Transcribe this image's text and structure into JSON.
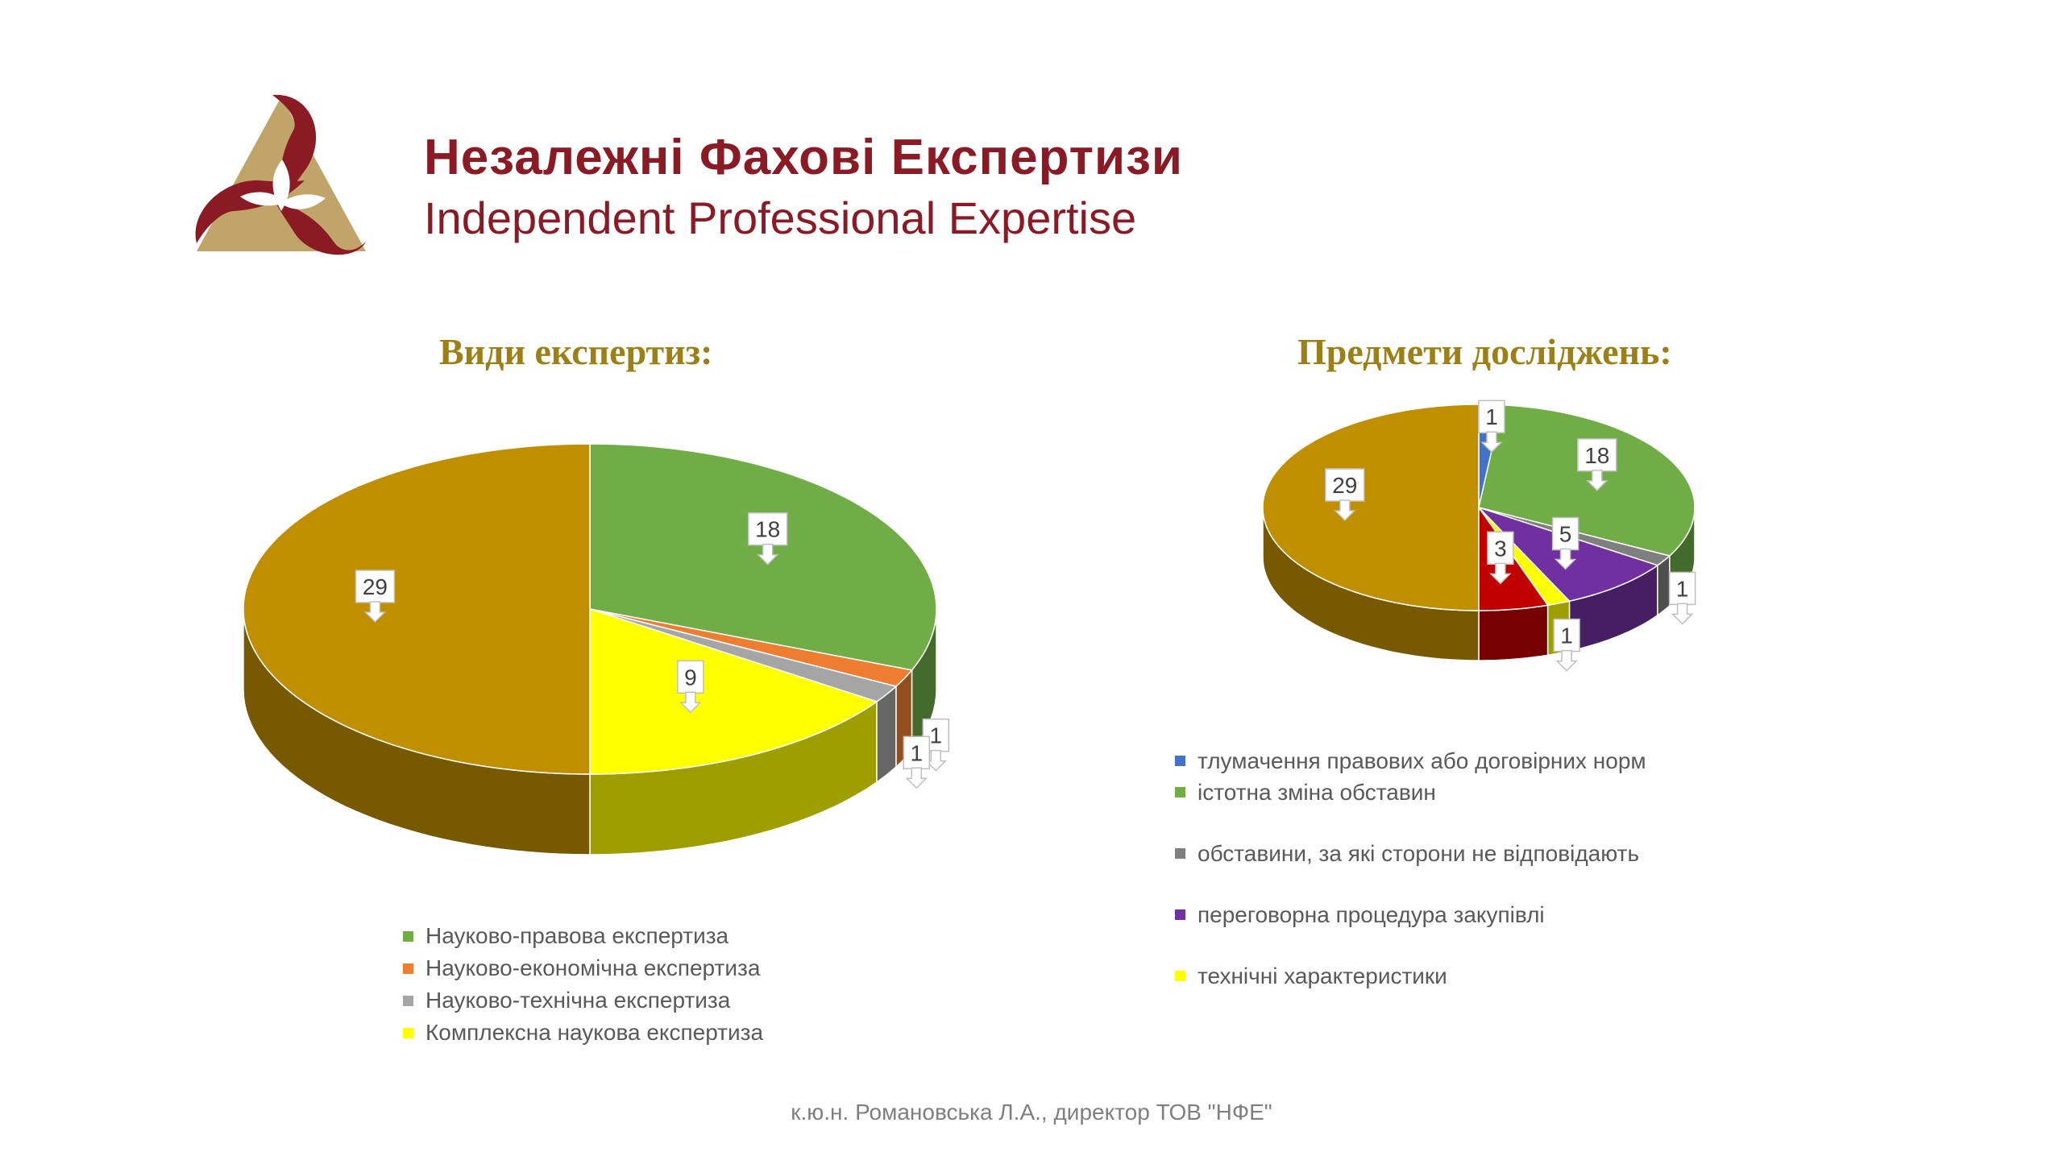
{
  "brand": {
    "title_ua": "Незалежні Фахові Експертизи",
    "title_en": "Independent Professional Expertise",
    "colors": {
      "primary": "#8a1a24",
      "secondary": "#c1a46a"
    }
  },
  "chart_data": [
    {
      "type": "pie",
      "title": "Види експертиз:",
      "categories": [
        "Науково-правова експертиза",
        "Науково-економічна експертиза",
        "Науково-технічна експертиза",
        "Комплексна наукова експертиза",
        ""
      ],
      "values": [
        18,
        1,
        1,
        9,
        29
      ],
      "colors": [
        "#70ad47",
        "#ed7d31",
        "#a5a5a5",
        "#ffff00",
        "#bf8f00"
      ],
      "legend": [
        "Науково-правова експертиза",
        "Науково-економічна експертиза",
        "Науково-технічна експертиза",
        "Комплексна наукова експертиза"
      ],
      "legend_position": "bottom",
      "data_labels": [
        "18",
        "1",
        "1",
        "9",
        "29"
      ],
      "style": "3d"
    },
    {
      "type": "pie",
      "title": "Предмети досліджень:",
      "categories": [
        "тлумачення правових або договірних норм",
        "істотна зміна обставин",
        "обставини, за які сторони не відповідають",
        "переговорна процедура закупівлі",
        "технічні характеристики",
        "",
        ""
      ],
      "values": [
        1,
        18,
        1,
        5,
        1,
        3,
        29
      ],
      "colors": [
        "#4472c4",
        "#70ad47",
        "#7f7f7f",
        "#7030a0",
        "#ffff00",
        "#c00000",
        "#bf8f00"
      ],
      "legend": [
        "тлумачення правових або договірних норм",
        "істотна зміна обставин",
        "обставини, за які сторони не відповідають",
        "переговорна процедура закупівлі",
        "технічні характеристики"
      ],
      "legend_position": "bottom",
      "data_labels": [
        "1",
        "18",
        "1",
        "5",
        "1",
        "3",
        "29"
      ],
      "style": "3d"
    }
  ],
  "footer": "к.ю.н. Романовська Л.А., директор ТОВ \"НФЕ\""
}
